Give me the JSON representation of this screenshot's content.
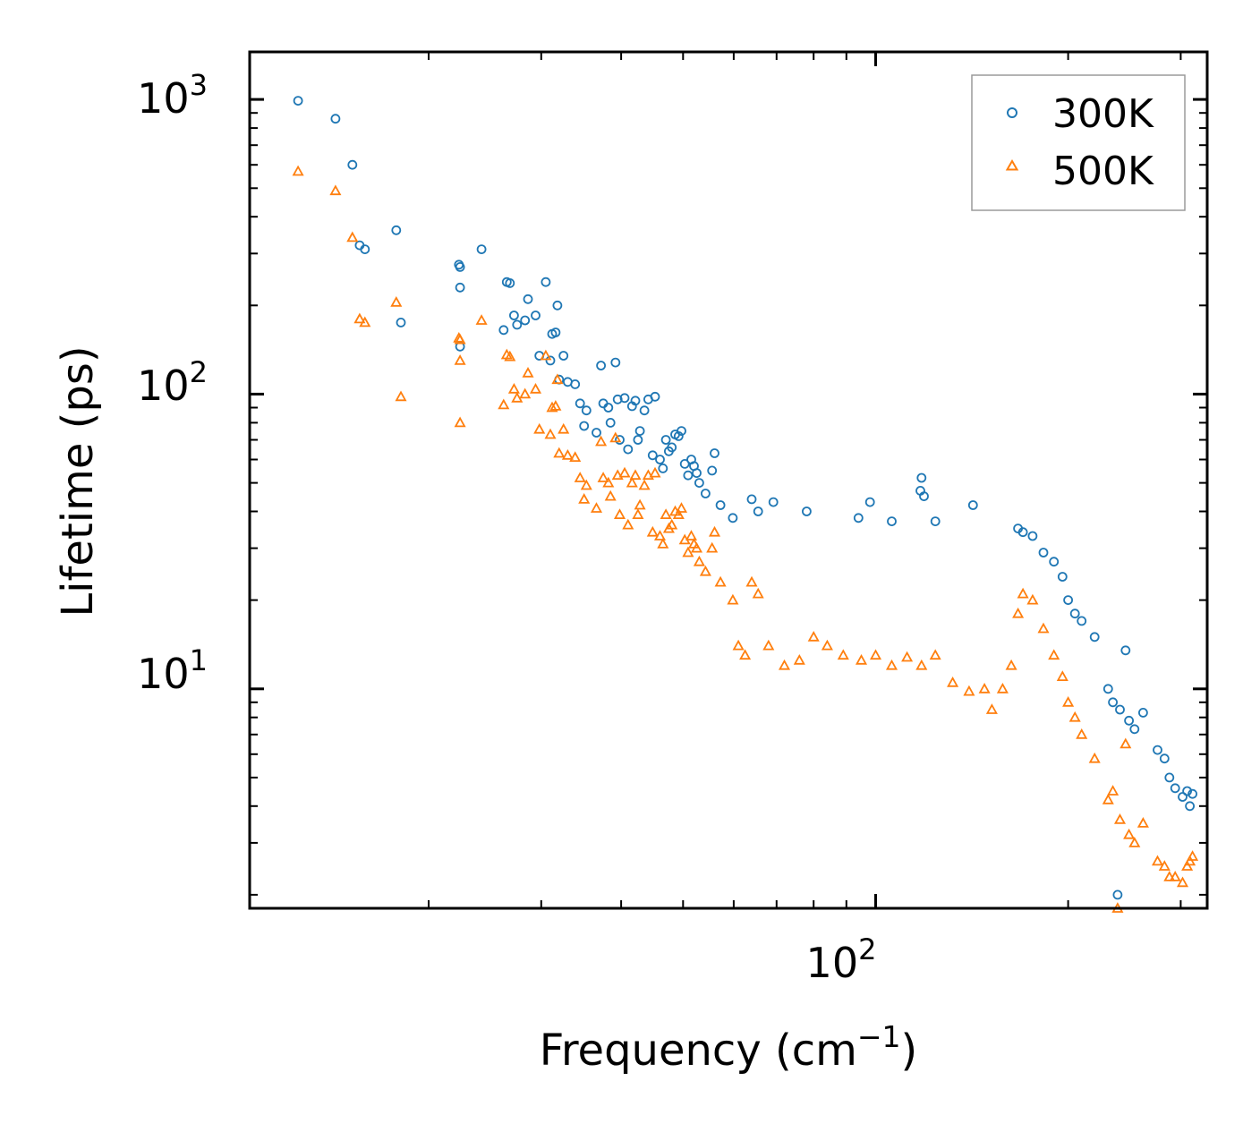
{
  "chart_data": {
    "type": "scatter",
    "xscale": "log",
    "yscale": "log",
    "xlim": [
      10.5,
      330
    ],
    "ylim": [
      1.8,
      1450
    ],
    "xlabel": "Frequency (cm",
    "xlabel_sup": "−1",
    "xlabel_end": ")",
    "ylabel": "Lifetime (ps)",
    "x_major_ticks": [
      {
        "value": 100,
        "base": "10",
        "exp": "2"
      }
    ],
    "y_major_ticks": [
      {
        "value": 10,
        "base": "10",
        "exp": "1"
      },
      {
        "value": 100,
        "base": "10",
        "exp": "2"
      },
      {
        "value": 1000,
        "base": "10",
        "exp": "3"
      }
    ],
    "legend_position": "top-right",
    "series": [
      {
        "name": "300K",
        "marker": "circle",
        "color": "#1f77b4",
        "points": [
          [
            12.5,
            990
          ],
          [
            14.3,
            860
          ],
          [
            15.2,
            600
          ],
          [
            15.6,
            320
          ],
          [
            15.9,
            310
          ],
          [
            17.8,
            360
          ],
          [
            18.1,
            175
          ],
          [
            22.3,
            275
          ],
          [
            22.4,
            270
          ],
          [
            22.4,
            230
          ],
          [
            22.4,
            145
          ],
          [
            24.2,
            310
          ],
          [
            26.5,
            240
          ],
          [
            26.8,
            238
          ],
          [
            26.2,
            165
          ],
          [
            27.2,
            185
          ],
          [
            27.5,
            172
          ],
          [
            28.3,
            178
          ],
          [
            28.6,
            210
          ],
          [
            29.4,
            185
          ],
          [
            30.5,
            240
          ],
          [
            31.2,
            160
          ],
          [
            31.6,
            162
          ],
          [
            31.8,
            200
          ],
          [
            29.8,
            135
          ],
          [
            31.0,
            130
          ],
          [
            32.5,
            135
          ],
          [
            32.0,
            112
          ],
          [
            33.0,
            110
          ],
          [
            33.9,
            108
          ],
          [
            34.5,
            93
          ],
          [
            35.0,
            78
          ],
          [
            35.3,
            88
          ],
          [
            36.6,
            74
          ],
          [
            37.2,
            125
          ],
          [
            37.5,
            93
          ],
          [
            38.2,
            90
          ],
          [
            38.5,
            80
          ],
          [
            39.2,
            128
          ],
          [
            39.5,
            96
          ],
          [
            39.8,
            70
          ],
          [
            40.5,
            97
          ],
          [
            41.0,
            65
          ],
          [
            41.6,
            91
          ],
          [
            42.1,
            95
          ],
          [
            42.5,
            70
          ],
          [
            42.8,
            75
          ],
          [
            43.5,
            88
          ],
          [
            44.1,
            96
          ],
          [
            44.8,
            62
          ],
          [
            45.2,
            98
          ],
          [
            46.0,
            60
          ],
          [
            46.5,
            56
          ],
          [
            47.0,
            70
          ],
          [
            47.5,
            64
          ],
          [
            48.0,
            66
          ],
          [
            48.6,
            73
          ],
          [
            49.2,
            72
          ],
          [
            49.7,
            75
          ],
          [
            50.3,
            58
          ],
          [
            50.9,
            53
          ],
          [
            51.5,
            60
          ],
          [
            52.0,
            57
          ],
          [
            52.5,
            54
          ],
          [
            53.0,
            50
          ],
          [
            54.2,
            46
          ],
          [
            55.5,
            55
          ],
          [
            56.0,
            63
          ],
          [
            57.2,
            42
          ],
          [
            59.8,
            38
          ],
          [
            64.0,
            44
          ],
          [
            65.5,
            40
          ],
          [
            69.2,
            43
          ],
          [
            78.0,
            40
          ],
          [
            94.0,
            38
          ],
          [
            98.0,
            43
          ],
          [
            106.0,
            37
          ],
          [
            118.0,
            52
          ],
          [
            117.5,
            47
          ],
          [
            119.0,
            45
          ],
          [
            124.0,
            37
          ],
          [
            142.0,
            42
          ],
          [
            167.0,
            35
          ],
          [
            170.0,
            34
          ],
          [
            176.0,
            33
          ],
          [
            183.0,
            29
          ],
          [
            190.0,
            27
          ],
          [
            196.0,
            24
          ],
          [
            200.0,
            20
          ],
          [
            205.0,
            18
          ],
          [
            210.0,
            17
          ],
          [
            220.0,
            15
          ],
          [
            231.0,
            10
          ],
          [
            235.0,
            9
          ],
          [
            241.0,
            8.5
          ],
          [
            246.0,
            13.5
          ],
          [
            249.0,
            7.8
          ],
          [
            254.0,
            7.3
          ],
          [
            262.0,
            8.3
          ],
          [
            276.0,
            6.2
          ],
          [
            283.0,
            5.8
          ],
          [
            288.0,
            5.0
          ],
          [
            294.0,
            4.6
          ],
          [
            302.0,
            4.3
          ],
          [
            307.0,
            4.5
          ],
          [
            310.0,
            4.0
          ],
          [
            313.0,
            4.4
          ],
          [
            239.0,
            2.0
          ]
        ]
      },
      {
        "name": "500K",
        "marker": "triangle",
        "color": "#ff7f0e",
        "points": [
          [
            12.5,
            570
          ],
          [
            14.3,
            490
          ],
          [
            15.2,
            340
          ],
          [
            15.6,
            180
          ],
          [
            15.9,
            175
          ],
          [
            17.8,
            205
          ],
          [
            18.1,
            98
          ],
          [
            22.3,
            155
          ],
          [
            22.4,
            153
          ],
          [
            22.4,
            130
          ],
          [
            22.4,
            80
          ],
          [
            24.2,
            178
          ],
          [
            26.5,
            136
          ],
          [
            26.8,
            134
          ],
          [
            26.2,
            92
          ],
          [
            27.2,
            104
          ],
          [
            27.5,
            97
          ],
          [
            28.3,
            100
          ],
          [
            28.6,
            118
          ],
          [
            29.4,
            104
          ],
          [
            30.5,
            135
          ],
          [
            31.2,
            90
          ],
          [
            31.6,
            91
          ],
          [
            31.8,
            112
          ],
          [
            29.8,
            76
          ],
          [
            31.0,
            73
          ],
          [
            32.5,
            76
          ],
          [
            32.0,
            63
          ],
          [
            33.0,
            62
          ],
          [
            33.9,
            61
          ],
          [
            34.5,
            52
          ],
          [
            35.0,
            44
          ],
          [
            35.3,
            49
          ],
          [
            36.6,
            41
          ],
          [
            37.2,
            69
          ],
          [
            37.5,
            52
          ],
          [
            38.2,
            50
          ],
          [
            38.5,
            45
          ],
          [
            39.2,
            71
          ],
          [
            39.5,
            53
          ],
          [
            39.8,
            39
          ],
          [
            40.5,
            54
          ],
          [
            41.0,
            36
          ],
          [
            41.6,
            50
          ],
          [
            42.1,
            53
          ],
          [
            42.5,
            39
          ],
          [
            42.8,
            42
          ],
          [
            43.5,
            49
          ],
          [
            44.1,
            53
          ],
          [
            44.8,
            34
          ],
          [
            45.2,
            54
          ],
          [
            46.0,
            33
          ],
          [
            46.5,
            31
          ],
          [
            47.0,
            39
          ],
          [
            47.5,
            35
          ],
          [
            48.0,
            36
          ],
          [
            48.6,
            40
          ],
          [
            49.2,
            39
          ],
          [
            49.7,
            41
          ],
          [
            50.3,
            32
          ],
          [
            50.9,
            29
          ],
          [
            51.5,
            33
          ],
          [
            52.0,
            31
          ],
          [
            52.5,
            30
          ],
          [
            53.0,
            27
          ],
          [
            54.2,
            25
          ],
          [
            55.5,
            30
          ],
          [
            56.0,
            34
          ],
          [
            57.2,
            23
          ],
          [
            59.8,
            20
          ],
          [
            64.0,
            23
          ],
          [
            65.5,
            21
          ],
          [
            61.0,
            14
          ],
          [
            62.5,
            13
          ],
          [
            68.0,
            14
          ],
          [
            72.0,
            12
          ],
          [
            76.0,
            12.5
          ],
          [
            80.0,
            15
          ],
          [
            84.0,
            14
          ],
          [
            89.0,
            13
          ],
          [
            95.0,
            12.5
          ],
          [
            100.0,
            13
          ],
          [
            106.0,
            12
          ],
          [
            112.0,
            12.8
          ],
          [
            118.0,
            12
          ],
          [
            124.0,
            13
          ],
          [
            132.0,
            10.5
          ],
          [
            140.0,
            9.8
          ],
          [
            148.0,
            10
          ],
          [
            152.0,
            8.5
          ],
          [
            158.0,
            10
          ],
          [
            163.0,
            12
          ],
          [
            167.0,
            18
          ],
          [
            170.0,
            21
          ],
          [
            176.0,
            20
          ],
          [
            183.0,
            16
          ],
          [
            190.0,
            13
          ],
          [
            196.0,
            11
          ],
          [
            200.0,
            9
          ],
          [
            205.0,
            8
          ],
          [
            210.0,
            7
          ],
          [
            220.0,
            5.8
          ],
          [
            231.0,
            4.2
          ],
          [
            235.0,
            4.5
          ],
          [
            241.0,
            3.6
          ],
          [
            246.0,
            6.5
          ],
          [
            249.0,
            3.2
          ],
          [
            254.0,
            3.0
          ],
          [
            262.0,
            3.5
          ],
          [
            276.0,
            2.6
          ],
          [
            283.0,
            2.5
          ],
          [
            288.0,
            2.3
          ],
          [
            294.0,
            2.3
          ],
          [
            302.0,
            2.2
          ],
          [
            307.0,
            2.5
          ],
          [
            310.0,
            2.6
          ],
          [
            313.0,
            2.7
          ],
          [
            239.0,
            1.8
          ]
        ]
      }
    ]
  }
}
